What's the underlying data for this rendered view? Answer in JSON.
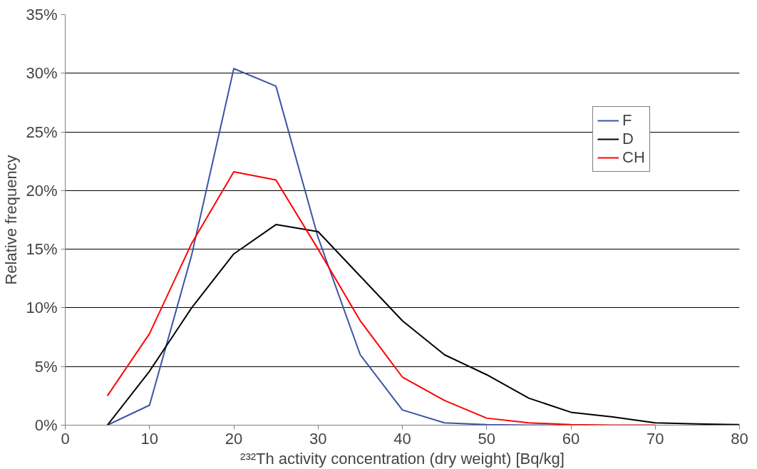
{
  "chart_data": {
    "type": "line",
    "xlabel": "²³²Th activity concentration (dry weight) [Bq/kg]",
    "ylabel": "Relative frequency",
    "x": [
      5,
      10,
      15,
      20,
      25,
      30,
      35,
      40,
      45,
      50,
      55,
      60,
      65,
      70,
      75,
      80
    ],
    "series": [
      {
        "name": "F",
        "color": "#3b54a4",
        "values": [
          0,
          1.7,
          14.5,
          30.4,
          28.9,
          16.0,
          6.0,
          1.3,
          0.2,
          0.05,
          0,
          0,
          null,
          null,
          null,
          null
        ]
      },
      {
        "name": "D",
        "color": "#000000",
        "values": [
          0,
          4.6,
          10.0,
          14.6,
          17.1,
          16.5,
          12.7,
          8.9,
          6.0,
          4.3,
          2.3,
          1.1,
          0.7,
          0.2,
          0.1,
          0.05
        ]
      },
      {
        "name": "CH",
        "color": "#ff0000",
        "values": [
          2.5,
          7.8,
          15.5,
          21.6,
          20.9,
          15.0,
          8.9,
          4.1,
          2.1,
          0.6,
          0.2,
          0.05,
          0,
          0,
          null,
          null
        ]
      }
    ],
    "xlim": [
      0,
      80
    ],
    "xticks": [
      0,
      10,
      20,
      30,
      40,
      50,
      60,
      70,
      80
    ],
    "ylim": [
      0,
      35
    ],
    "yticks": [
      {
        "value": 0,
        "label": "0%"
      },
      {
        "value": 5,
        "label": "5%"
      },
      {
        "value": 10,
        "label": "10%"
      },
      {
        "value": 15,
        "label": "15%"
      },
      {
        "value": 20,
        "label": "20%"
      },
      {
        "value": 25,
        "label": "25%"
      },
      {
        "value": 30,
        "label": "30%"
      },
      {
        "value": 35,
        "label": "35%"
      }
    ],
    "grid": "y",
    "legend": "top right",
    "marker": "none",
    "line_style": "solid"
  }
}
